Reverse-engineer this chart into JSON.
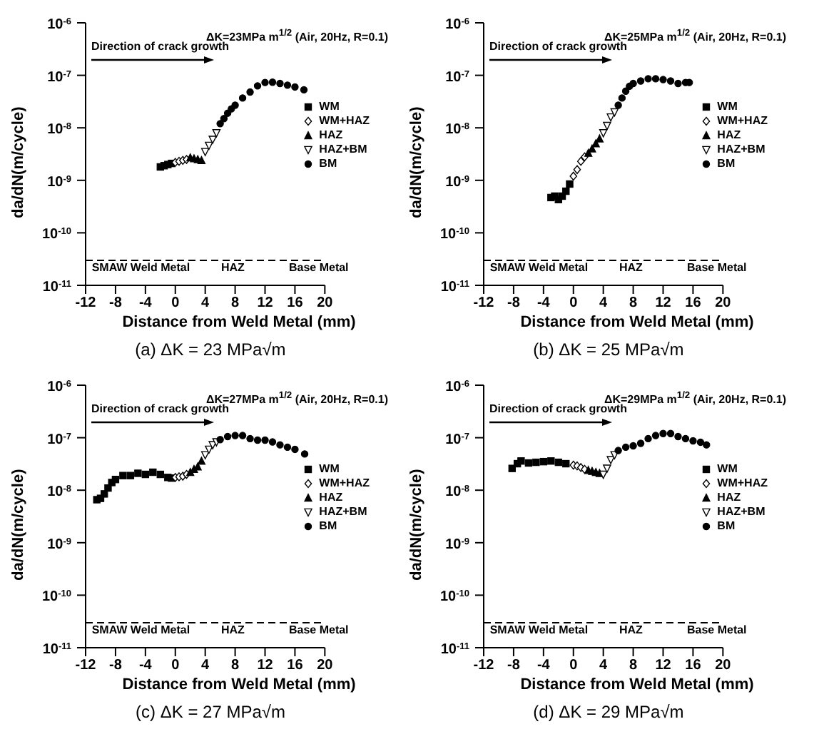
{
  "chart_data": [
    {
      "type": "scatter",
      "title": "(a)  ΔK = 23  MPa√m",
      "xlabel": "Distance from Weld Metal (mm)",
      "ylabel": "da/dN(m/cycle)",
      "log": "y",
      "xlim": [
        -12,
        20
      ],
      "xticks": [
        -12,
        -8,
        -4,
        0,
        4,
        8,
        12,
        16,
        20
      ],
      "ylim": [
        1e-11,
        1e-06
      ],
      "yticks": [
        {
          "value": 1e-11,
          "label": "10$^{-11}$"
        },
        {
          "value": 1e-10,
          "label": "10$^{-10}$"
        },
        {
          "value": 1e-09,
          "label": "10$^{-9}$"
        },
        {
          "value": 1e-08,
          "label": "10$^{-8}$"
        },
        {
          "value": 1e-07,
          "label": "10$^{-7}$"
        },
        {
          "value": 1e-06,
          "label": "10$^{-6}$"
        }
      ],
      "legend": "right",
      "ref_lines": [
        {
          "axis": "y",
          "value": 3e-11,
          "line_style": "dashed",
          "color": "#000000"
        }
      ],
      "annotations": [
        "ΔK=23MPa m$^{1/2}$ (Air, 20Hz, R=0.1)",
        "Direction of crack growth",
        "SMAW Weld Metal",
        "HAZ",
        "Base Metal"
      ],
      "series": [
        {
          "name": "WM",
          "color": "#000000",
          "marker": "square",
          "x": [
            -2,
            -1.5,
            -1,
            -0.5
          ],
          "values": [
            1.8e-09,
            1.9e-09,
            2e-09,
            2.1e-09
          ]
        },
        {
          "name": "WM+HAZ",
          "color": "#000000",
          "marker": "diamond",
          "x": [
            0,
            0.5,
            1,
            1.5
          ],
          "values": [
            2.2e-09,
            2.3e-09,
            2.4e-09,
            2.5e-09
          ]
        },
        {
          "name": "HAZ",
          "color": "#000000",
          "marker": "triangle",
          "x": [
            2,
            2.5,
            3,
            3.5
          ],
          "values": [
            2.7e-09,
            2.6e-09,
            2.5e-09,
            2.4e-09
          ]
        },
        {
          "name": "HAZ+BM",
          "color": "#000000",
          "marker": "triangle_down",
          "x": [
            4,
            4.5,
            5,
            5.5
          ],
          "values": [
            3.5e-09,
            4.6e-09,
            6e-09,
            8e-09
          ]
        },
        {
          "name": "BM",
          "color": "#000000",
          "marker": "circle",
          "x": [
            6,
            6.5,
            7,
            7.5,
            8,
            9,
            10,
            11,
            12,
            13,
            14,
            15,
            16,
            17.2
          ],
          "values": [
            1.2e-08,
            1.5e-08,
            1.9e-08,
            2.3e-08,
            2.7e-08,
            3.7e-08,
            4.8e-08,
            6.3e-08,
            7.3e-08,
            7.4e-08,
            7e-08,
            6.5e-08,
            6e-08,
            5.3e-08
          ]
        }
      ]
    },
    {
      "type": "scatter",
      "title": "(b)  ΔK = 25  MPa√m",
      "xlabel": "Distance from Weld Metal (mm)",
      "ylabel": "da/dN(m/cycle)",
      "log": "y",
      "xlim": [
        -12,
        20
      ],
      "xticks": [
        -12,
        -8,
        -4,
        0,
        4,
        8,
        12,
        16,
        20
      ],
      "ylim": [
        1e-11,
        1e-06
      ],
      "yticks": [
        {
          "value": 1e-11,
          "label": "10$^{-11}$"
        },
        {
          "value": 1e-10,
          "label": "10$^{-10}$"
        },
        {
          "value": 1e-09,
          "label": "10$^{-9}$"
        },
        {
          "value": 1e-08,
          "label": "10$^{-8}$"
        },
        {
          "value": 1e-07,
          "label": "10$^{-7}$"
        },
        {
          "value": 1e-06,
          "label": "10$^{-6}$"
        }
      ],
      "legend": "right",
      "ref_lines": [
        {
          "axis": "y",
          "value": 3e-11,
          "line_style": "dashed",
          "color": "#000000"
        }
      ],
      "annotations": [
        "ΔK=25MPa m$^{1/2}$ (Air, 20Hz, R=0.1)",
        "Direction of crack growth",
        "SMAW Weld Metal",
        "HAZ",
        "Base Metal"
      ],
      "series": [
        {
          "name": "WM",
          "color": "#000000",
          "marker": "square",
          "x": [
            -3,
            -2.5,
            -2,
            -1.5,
            -1,
            -0.5
          ],
          "values": [
            4.7e-10,
            5e-10,
            4.3e-10,
            5e-10,
            6.2e-10,
            8.5e-10
          ]
        },
        {
          "name": "WM+HAZ",
          "color": "#000000",
          "marker": "diamond",
          "x": [
            0,
            0.5,
            1,
            1.5
          ],
          "values": [
            1.2e-09,
            1.6e-09,
            2.3e-09,
            2.8e-09
          ]
        },
        {
          "name": "HAZ",
          "color": "#000000",
          "marker": "triangle",
          "x": [
            2,
            2.5,
            3,
            3.5
          ],
          "values": [
            3.3e-09,
            4e-09,
            5e-09,
            6.2e-09
          ]
        },
        {
          "name": "HAZ+BM",
          "color": "#000000",
          "marker": "triangle_down",
          "x": [
            4,
            4.5,
            5,
            5.5
          ],
          "values": [
            8e-09,
            1.1e-08,
            1.6e-08,
            2e-08
          ]
        },
        {
          "name": "BM",
          "color": "#000000",
          "marker": "circle",
          "x": [
            6,
            6.5,
            7,
            7.5,
            8,
            9,
            10,
            11,
            12,
            13,
            14,
            15,
            15.5
          ],
          "values": [
            2.7e-08,
            3.7e-08,
            5e-08,
            6.2e-08,
            7e-08,
            7.8e-08,
            8.6e-08,
            8.6e-08,
            8.3e-08,
            7.8e-08,
            7e-08,
            7.3e-08,
            7.3e-08
          ]
        }
      ]
    },
    {
      "type": "scatter",
      "title": "(c)  ΔK = 27  MPa√m",
      "xlabel": "Distance from Weld Metal (mm)",
      "ylabel": "da/dN(m/cycle)",
      "log": "y",
      "xlim": [
        -12,
        20
      ],
      "xticks": [
        -12,
        -8,
        -4,
        0,
        4,
        8,
        12,
        16,
        20
      ],
      "ylim": [
        1e-11,
        1e-06
      ],
      "yticks": [
        {
          "value": 1e-11,
          "label": "10$^{-11}$"
        },
        {
          "value": 1e-10,
          "label": "10$^{-10}$"
        },
        {
          "value": 1e-09,
          "label": "10$^{-9}$"
        },
        {
          "value": 1e-08,
          "label": "10$^{-8}$"
        },
        {
          "value": 1e-07,
          "label": "10$^{-7}$"
        },
        {
          "value": 1e-06,
          "label": "10$^{-6}$"
        }
      ],
      "legend": "right",
      "ref_lines": [
        {
          "axis": "y",
          "value": 3e-11,
          "line_style": "dashed",
          "color": "#000000"
        }
      ],
      "annotations": [
        "ΔK=27MPa m$^{1/2}$ (Air, 20Hz, R=0.1)",
        "Direction of crack growth",
        "SMAW Weld Metal",
        "HAZ",
        "Base Metal"
      ],
      "series": [
        {
          "name": "WM",
          "color": "#000000",
          "marker": "square",
          "x": [
            -10.5,
            -10,
            -9.5,
            -9,
            -8.5,
            -8,
            -7,
            -6,
            -5,
            -4,
            -3,
            -2,
            -1,
            -0.5
          ],
          "values": [
            6.6e-09,
            7e-09,
            8.5e-09,
            1.1e-08,
            1.4e-08,
            1.6e-08,
            1.9e-08,
            1.9e-08,
            2.1e-08,
            2e-08,
            2.2e-08,
            2e-08,
            1.75e-08,
            1.7e-08
          ]
        },
        {
          "name": "WM+HAZ",
          "color": "#000000",
          "marker": "diamond",
          "x": [
            0,
            0.5,
            1,
            1.5
          ],
          "values": [
            1.75e-08,
            1.8e-08,
            1.85e-08,
            2e-08
          ]
        },
        {
          "name": "HAZ",
          "color": "#000000",
          "marker": "triangle",
          "x": [
            2,
            2.5,
            3,
            3.5
          ],
          "values": [
            2.2e-08,
            2.5e-08,
            2.8e-08,
            3.6e-08
          ]
        },
        {
          "name": "HAZ+BM",
          "color": "#000000",
          "marker": "triangle_down",
          "x": [
            4,
            4.5,
            5,
            5.5
          ],
          "values": [
            4.7e-08,
            6e-08,
            7.3e-08,
            8.3e-08
          ]
        },
        {
          "name": "BM",
          "color": "#000000",
          "marker": "circle",
          "x": [
            6,
            7,
            8,
            9,
            10,
            11,
            12,
            13,
            14,
            15,
            16,
            17.3
          ],
          "values": [
            9.2e-08,
            1.05e-07,
            1.1e-07,
            1.1e-07,
            9.6e-08,
            9e-08,
            9e-08,
            8.3e-08,
            7.3e-08,
            6.6e-08,
            6e-08,
            4.9e-08
          ]
        }
      ]
    },
    {
      "type": "scatter",
      "title": "(d)  ΔK = 29  MPa√m",
      "xlabel": "Distance from Weld Metal (mm)",
      "ylabel": "da/dN(m/cycle)",
      "log": "y",
      "xlim": [
        -12,
        20
      ],
      "xticks": [
        -12,
        -8,
        -4,
        0,
        4,
        8,
        12,
        16,
        20
      ],
      "ylim": [
        1e-11,
        1e-06
      ],
      "yticks": [
        {
          "value": 1e-11,
          "label": "10$^{-11}$"
        },
        {
          "value": 1e-10,
          "label": "10$^{-10}$"
        },
        {
          "value": 1e-09,
          "label": "10$^{-9}$"
        },
        {
          "value": 1e-08,
          "label": "10$^{-8}$"
        },
        {
          "value": 1e-07,
          "label": "10$^{-7}$"
        },
        {
          "value": 1e-06,
          "label": "10$^{-6}$"
        }
      ],
      "legend": "right",
      "ref_lines": [
        {
          "axis": "y",
          "value": 3e-11,
          "line_style": "dashed",
          "color": "#000000"
        }
      ],
      "annotations": [
        "ΔK=29MPa m$^{1/2}$ (Air, 20Hz, R=0.1)",
        "Direction of crack growth",
        "SMAW Weld Metal",
        "HAZ",
        "Base Metal"
      ],
      "series": [
        {
          "name": "WM",
          "color": "#000000",
          "marker": "square",
          "x": [
            -8.2,
            -7.5,
            -7,
            -6,
            -5,
            -4,
            -3,
            -2,
            -1
          ],
          "values": [
            2.6e-08,
            3.2e-08,
            3.6e-08,
            3.3e-08,
            3.4e-08,
            3.5e-08,
            3.6e-08,
            3.4e-08,
            3.2e-08
          ]
        },
        {
          "name": "WM+HAZ",
          "color": "#000000",
          "marker": "diamond",
          "x": [
            0,
            0.5,
            1,
            1.5
          ],
          "values": [
            3e-08,
            2.9e-08,
            2.7e-08,
            2.5e-08
          ]
        },
        {
          "name": "HAZ",
          "color": "#000000",
          "marker": "triangle",
          "x": [
            2,
            2.5,
            3,
            3.5
          ],
          "values": [
            2.4e-08,
            2.3e-08,
            2.2e-08,
            2.1e-08
          ]
        },
        {
          "name": "HAZ+BM",
          "color": "#000000",
          "marker": "triangle_down",
          "x": [
            4,
            4.5,
            5,
            5.5
          ],
          "values": [
            2e-08,
            2.6e-08,
            3.8e-08,
            4.7e-08
          ]
        },
        {
          "name": "BM",
          "color": "#000000",
          "marker": "circle",
          "x": [
            6,
            7,
            8,
            9,
            10,
            11,
            12,
            13,
            14,
            15,
            16,
            17,
            17.8
          ],
          "values": [
            5.7e-08,
            6.6e-08,
            7e-08,
            7.8e-08,
            9.6e-08,
            1.1e-07,
            1.2e-07,
            1.2e-07,
            1.05e-07,
            9.6e-08,
            8.7e-08,
            8.2e-08,
            7.3e-08
          ]
        }
      ]
    }
  ]
}
